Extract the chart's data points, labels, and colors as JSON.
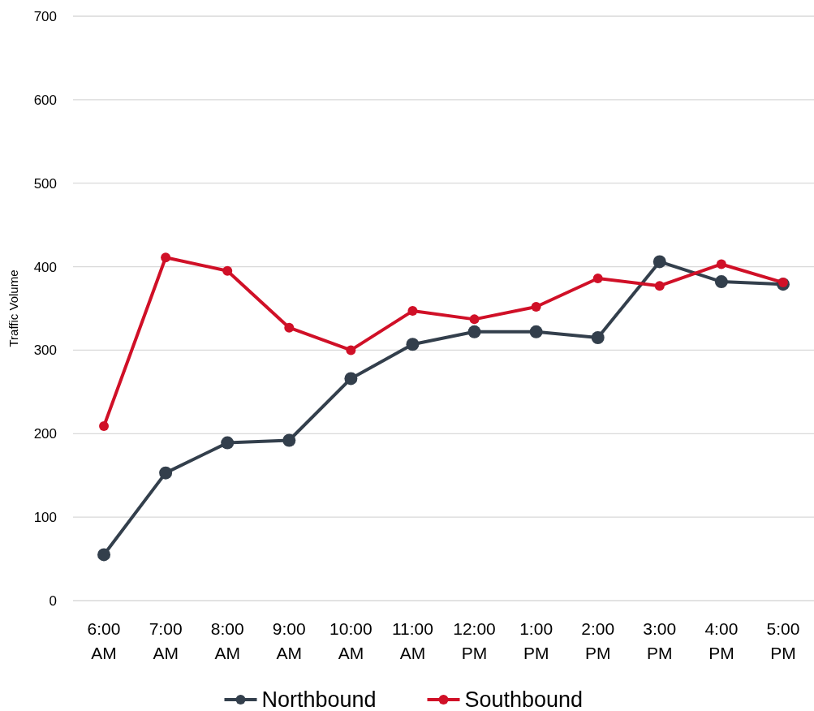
{
  "chart_data": {
    "type": "line",
    "ylabel": "Traffic Volume",
    "categories": [
      "6:00 AM",
      "7:00 AM",
      "8:00 AM",
      "9:00 AM",
      "10:00 AM",
      "11:00 AM",
      "12:00 PM",
      "1:00 PM",
      "2:00 PM",
      "3:00 PM",
      "4:00 PM",
      "5:00 PM"
    ],
    "series": [
      {
        "name": "Northbound",
        "color": "#333f4c",
        "values": [
          55,
          153,
          189,
          192,
          266,
          307,
          322,
          322,
          315,
          406,
          382,
          379
        ]
      },
      {
        "name": "Southbound",
        "color": "#d01027",
        "values": [
          209,
          411,
          395,
          327,
          300,
          347,
          337,
          352,
          386,
          377,
          403,
          381
        ]
      }
    ],
    "ylim": [
      0,
      700
    ],
    "yticks": [
      0,
      100,
      200,
      300,
      400,
      500,
      600,
      700
    ],
    "grid": "y",
    "legend": "bottom",
    "marker": "circle",
    "line_style": "solid"
  }
}
